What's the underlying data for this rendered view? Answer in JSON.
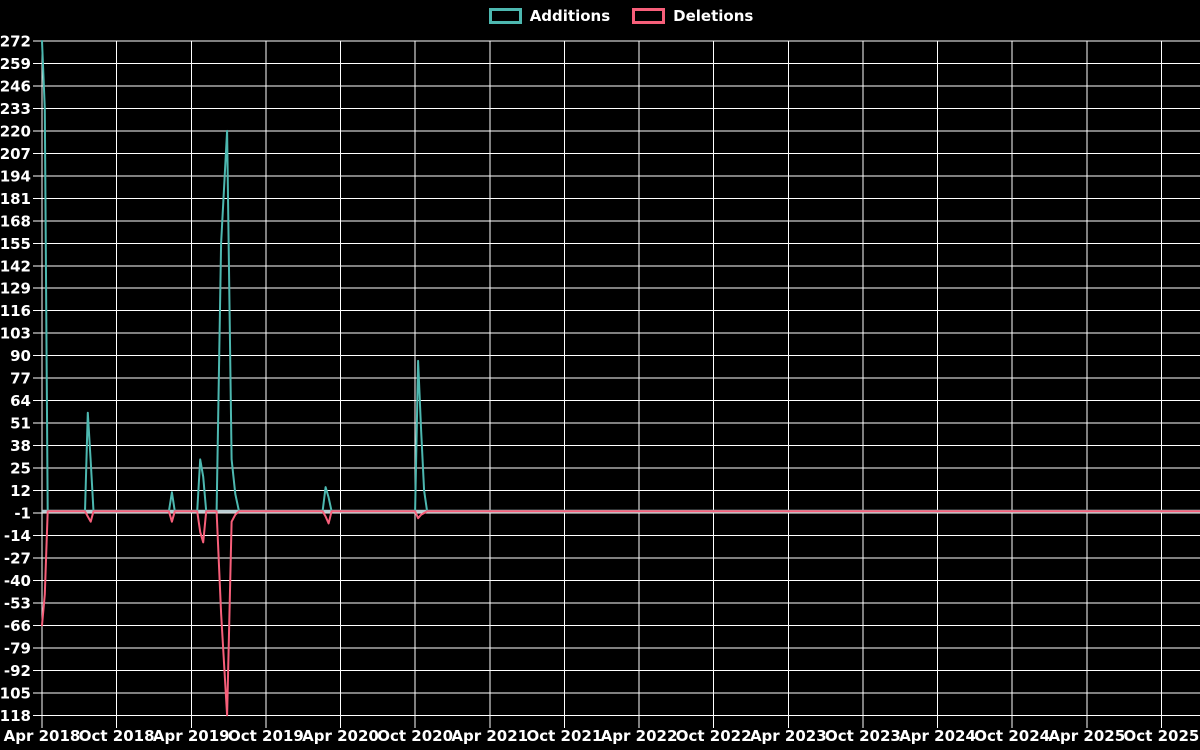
{
  "legend": {
    "items": [
      {
        "label": "Additions",
        "color": "#4db8b0"
      },
      {
        "label": "Deletions",
        "color": "#f75f7a"
      }
    ]
  },
  "colors": {
    "background": "#000000",
    "grid": "#ffffff",
    "text": "#ffffff",
    "zero_line": "#b9ccd1",
    "additions": "#4db8b0",
    "deletions": "#f75f7a"
  },
  "chart_data": {
    "type": "line",
    "title": "",
    "xlabel": "",
    "ylabel": "",
    "legend_position": "top-center",
    "grid": true,
    "background": "black",
    "ylim": [
      -118,
      272
    ],
    "y_tick_step": 13,
    "y_ticks": [
      272,
      259,
      246,
      233,
      220,
      207,
      194,
      181,
      168,
      155,
      142,
      129,
      116,
      103,
      90,
      77,
      64,
      51,
      38,
      25,
      12,
      -1,
      -14,
      -27,
      -40,
      -53,
      -66,
      -79,
      -92,
      -105,
      -118
    ],
    "xlim": [
      2018.25,
      2026.01
    ],
    "x_tick_positions": [
      2018.25,
      2018.75,
      2019.25,
      2019.75,
      2020.25,
      2020.75,
      2021.25,
      2021.75,
      2022.25,
      2022.75,
      2023.25,
      2023.75,
      2024.25,
      2024.75,
      2025.25,
      2025.75
    ],
    "x_tick_labels": [
      "Apr 2018",
      "Oct 2018",
      "Apr 2019",
      "Oct 2019",
      "Apr 2020",
      "Oct 2020",
      "Apr 2021",
      "Oct 2021",
      "Apr 2022",
      "Oct 2022",
      "Apr 2023",
      "Oct 2023",
      "Apr 2024",
      "Oct 2024",
      "Apr 2025",
      "Oct 2025"
    ],
    "zero_line_value": 0,
    "series": [
      {
        "name": "Additions",
        "color": "#4db8b0",
        "points": [
          [
            2018.25,
            272
          ],
          [
            2018.269,
            233
          ],
          [
            2018.288,
            0
          ],
          [
            2018.538,
            0
          ],
          [
            2018.557,
            57
          ],
          [
            2018.576,
            29
          ],
          [
            2018.595,
            0
          ],
          [
            2019.1,
            0
          ],
          [
            2019.12,
            11
          ],
          [
            2019.14,
            0
          ],
          [
            2019.29,
            0
          ],
          [
            2019.31,
            30
          ],
          [
            2019.33,
            20
          ],
          [
            2019.35,
            0
          ],
          [
            2019.42,
            0
          ],
          [
            2019.45,
            155
          ],
          [
            2019.49,
            220
          ],
          [
            2019.52,
            30
          ],
          [
            2019.545,
            10
          ],
          [
            2019.57,
            0
          ],
          [
            2020.13,
            0
          ],
          [
            2020.15,
            14
          ],
          [
            2020.17,
            8
          ],
          [
            2020.19,
            0
          ],
          [
            2020.75,
            0
          ],
          [
            2020.77,
            87
          ],
          [
            2020.79,
            47
          ],
          [
            2020.81,
            12
          ],
          [
            2020.83,
            0
          ],
          [
            2026.01,
            0
          ]
        ]
      },
      {
        "name": "Deletions",
        "color": "#f75f7a",
        "points": [
          [
            2018.25,
            -66
          ],
          [
            2018.269,
            -48
          ],
          [
            2018.288,
            0
          ],
          [
            2018.538,
            0
          ],
          [
            2018.557,
            -3
          ],
          [
            2018.576,
            -6
          ],
          [
            2018.595,
            0
          ],
          [
            2019.1,
            0
          ],
          [
            2019.12,
            -6
          ],
          [
            2019.14,
            0
          ],
          [
            2019.29,
            0
          ],
          [
            2019.31,
            -12
          ],
          [
            2019.33,
            -18
          ],
          [
            2019.35,
            0
          ],
          [
            2019.42,
            0
          ],
          [
            2019.45,
            -59
          ],
          [
            2019.49,
            -118
          ],
          [
            2019.52,
            -6
          ],
          [
            2019.545,
            -2
          ],
          [
            2019.57,
            0
          ],
          [
            2020.13,
            0
          ],
          [
            2020.15,
            -3
          ],
          [
            2020.17,
            -7
          ],
          [
            2020.19,
            0
          ],
          [
            2020.75,
            0
          ],
          [
            2020.77,
            -4
          ],
          [
            2020.79,
            -2
          ],
          [
            2020.83,
            0
          ],
          [
            2026.01,
            0
          ]
        ]
      }
    ]
  }
}
